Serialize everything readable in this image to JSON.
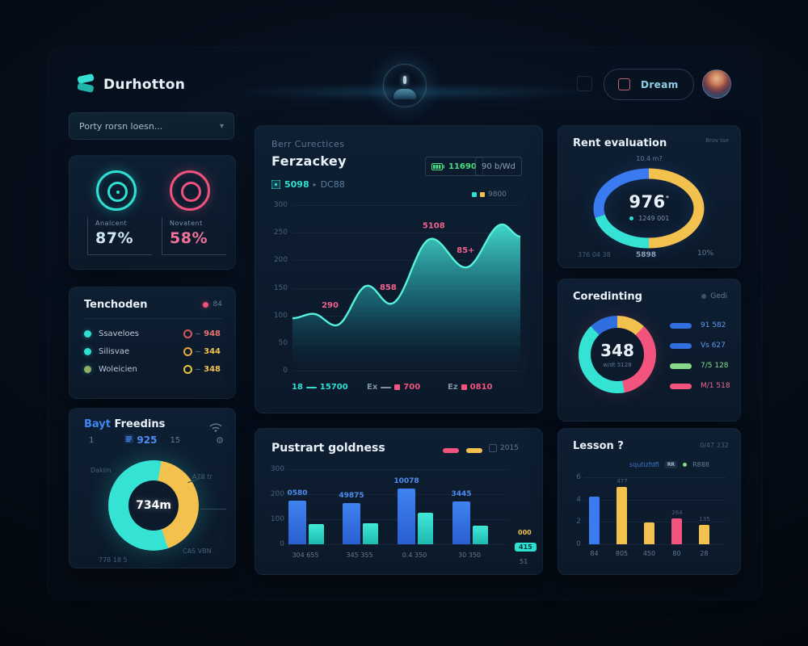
{
  "palette": {
    "teal": "#2ee0d2",
    "blue": "#2f6fe0",
    "yellow": "#f2c14e",
    "pink": "#f2547d",
    "green": "#4ade80"
  },
  "header": {
    "app_name": "Durhotton",
    "dream_label": "Dream",
    "search_value": "Porty rorsn loesn..."
  },
  "sidebar": {
    "gauges": {
      "left": {
        "label": "Analcent",
        "value": "87%"
      },
      "right": {
        "label": "Novatent",
        "value": "58%"
      }
    },
    "tenchoden": {
      "title": "Tenchoden",
      "badge": "84",
      "rows": [
        {
          "label": "Ssaveloes",
          "value": "948",
          "dot_color": "#2ee0d2",
          "value_color": "#e87272",
          "value_dot": "#d95757"
        },
        {
          "label": "Silisvae",
          "value": "344",
          "dot_color": "#2ee0d2",
          "value_color": "#f2c14e",
          "value_dot": "#e8a93c"
        },
        {
          "label": "Woleicien",
          "value": "348",
          "dot_color": "#8fae62",
          "value_color": "#f2c14e",
          "value_dot": "#e8c23c"
        }
      ]
    },
    "freedins": {
      "title_accent": "Bayt",
      "title_rest": "Freedins",
      "stats": {
        "a": "1",
        "b": "925",
        "c": "15"
      },
      "donut": {
        "center": "734m",
        "start_deg": 10,
        "segments": [
          {
            "name": "yellow",
            "color": "#f2c14e",
            "pct": 42
          },
          {
            "name": "teal",
            "color": "#35e3d4",
            "pct": 58
          }
        ]
      },
      "labels": {
        "top_left": "Dakim",
        "right": "A78 tr",
        "bottom_right": "CAS VBN",
        "bottom_left": "778 18 5"
      }
    }
  },
  "main": {
    "performance": {
      "eyebrow": "Berr Curectices",
      "title": "Ferzackey",
      "chip_primary": "11690",
      "chip_secondary": "90 b/Wd",
      "stat_value": "5098",
      "stat_label": "DC88",
      "mini_legend_value": "9800",
      "chart_data": {
        "type": "area",
        "ylim": [
          0,
          300
        ],
        "yticks": [
          "300",
          "250",
          "200",
          "150",
          "100",
          "50",
          "0"
        ],
        "points": [
          [
            0,
            95
          ],
          [
            0.09,
            103
          ],
          [
            0.19,
            82
          ],
          [
            0.33,
            154
          ],
          [
            0.43,
            121
          ],
          [
            0.61,
            239
          ],
          [
            0.76,
            187
          ],
          [
            0.92,
            265
          ],
          [
            1,
            243
          ]
        ],
        "line_color": "#55f2dc",
        "annotations": [
          {
            "text": "290",
            "x": 0.165,
            "y": 114
          },
          {
            "text": "858",
            "x": 0.42,
            "y": 146
          },
          {
            "text": "5108",
            "x": 0.62,
            "y": 258
          },
          {
            "text": "85+",
            "x": 0.76,
            "y": 214
          }
        ],
        "legend": [
          {
            "label": "18",
            "value": "15700",
            "marker": "dash",
            "color": "#2ee0d2",
            "label_color": "#2ee0d2"
          },
          {
            "label": "Ex",
            "value": "700",
            "marker": "dash-square",
            "color": "#f2547d",
            "label_color": "#7b93a9"
          },
          {
            "label": "Ez",
            "value": "0810",
            "marker": "square",
            "color": "#f2547d",
            "label_color": "#7b93a9"
          }
        ]
      }
    },
    "pustrart": {
      "title": "Pustrart goldness",
      "legend_note": "2015",
      "side_top": "000",
      "side_badge": "415",
      "side_bottom": "51",
      "chart_data": {
        "type": "bar",
        "categories": [
          "304 655",
          "345 355",
          "0.4 350",
          "30 350"
        ],
        "series": [
          {
            "name": "primary",
            "color": "#2f6fe0",
            "values": [
              174,
              165,
              223,
              171
            ]
          },
          {
            "name": "secondary",
            "color": "#35e3d4",
            "values": [
              81,
              84,
              126,
              74
            ]
          }
        ],
        "bar_labels": [
          "0580",
          "49875",
          "10078",
          "3445"
        ],
        "ylim": [
          0,
          300
        ],
        "yticks": [
          "300",
          "200",
          "100",
          "0"
        ]
      }
    }
  },
  "right": {
    "rent": {
      "title": "Rent evaluation",
      "corner_note": "Brov tse",
      "top_label": "10.4 m?",
      "center_value": "976",
      "center_sup": "°",
      "center_sub": "1249 001",
      "bottom_left": "376 04 38",
      "bottom_mid": "5898",
      "bottom_right": "10%",
      "ring_segments": [
        {
          "name": "yellow",
          "color": "#f2c14e",
          "from": 0,
          "to": 180
        },
        {
          "name": "teal",
          "color": "#35e3d4",
          "from": 180,
          "to": 257
        },
        {
          "name": "blue",
          "color": "#3a7bf2",
          "from": 257,
          "to": 360
        }
      ]
    },
    "coredinting": {
      "title": "Coredinting",
      "corner_note": "Gedi",
      "center_value": "348",
      "center_sub": "w/dt 5128",
      "donut": {
        "start_deg": 0,
        "segments": [
          {
            "name": "yellow",
            "color": "#f2c14e",
            "pct": 12
          },
          {
            "name": "pink",
            "color": "#f2547d",
            "pct": 35
          },
          {
            "name": "teal",
            "color": "#35e3d4",
            "pct": 41
          },
          {
            "name": "blue",
            "color": "#2f6fe0",
            "pct": 12
          }
        ]
      },
      "legend": [
        {
          "label": "91 582",
          "pill_color": "#2f6fe0",
          "text_color": "#5b9cf5"
        },
        {
          "label": "Vs 627",
          "pill_color": "#2f6fe0",
          "text_color": "#5b9cf5"
        },
        {
          "label": "7/5 128",
          "pill_color": "#86d98a",
          "text_color": "#86d98a"
        },
        {
          "label": "M/1 518",
          "pill_color": "#f2547d",
          "text_color": "#f06a92"
        }
      ]
    },
    "lesson": {
      "title": "Lesson ?",
      "corner_note": "0/47 232",
      "legend_text": "squtizfdfi",
      "legend_badge": "RR",
      "legend_extra": "R888",
      "chart_data": {
        "type": "bar",
        "categories": [
          "84",
          "805",
          "450",
          "80",
          "28"
        ],
        "values": [
          71,
          85,
          33,
          39,
          29
        ],
        "colors": [
          "#3a7bf2",
          "#f2c14e",
          "#f2c14e",
          "#f2547d",
          "#f2c14e"
        ],
        "bar_labels": [
          "",
          "477",
          "",
          "264",
          "135"
        ],
        "ylim": [
          0,
          100
        ],
        "yticks": [
          "6",
          "4",
          "2",
          "0"
        ]
      }
    }
  }
}
